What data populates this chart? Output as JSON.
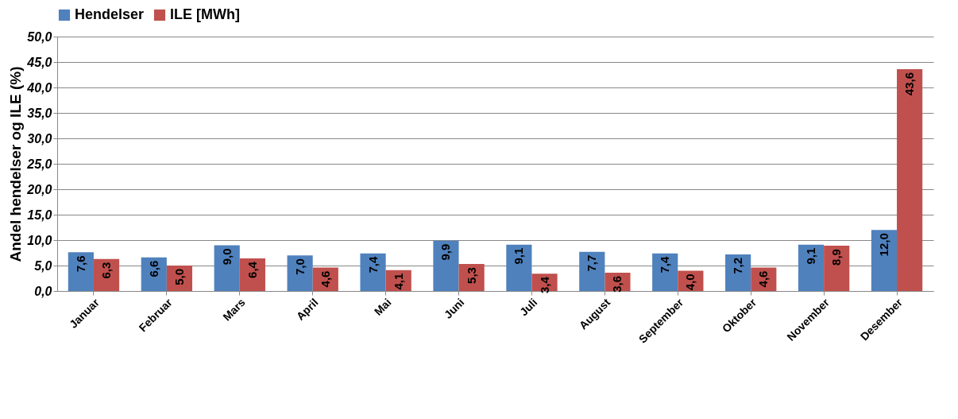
{
  "chart_data": {
    "type": "bar",
    "ylabel": "Andel hendelser og ILE (%)",
    "categories": [
      "Januar",
      "Februar",
      "Mars",
      "April",
      "Mai",
      "Juni",
      "Juli",
      "August",
      "September",
      "Oktober",
      "November",
      "Desember"
    ],
    "series": [
      {
        "name": "Hendelser",
        "color": "#4f81bd",
        "values": [
          7.6,
          6.6,
          9.0,
          7.0,
          7.4,
          9.9,
          9.1,
          7.7,
          7.4,
          7.2,
          9.1,
          12.0
        ],
        "value_labels": [
          "7,6",
          "6,6",
          "9,0",
          "7,0",
          "7,4",
          "9,9",
          "9,1",
          "7,7",
          "7,4",
          "7,2",
          "9,1",
          "12,0"
        ]
      },
      {
        "name": "ILE [MWh]",
        "color": "#c0504d",
        "values": [
          6.3,
          5.0,
          6.4,
          4.6,
          4.1,
          5.3,
          3.4,
          3.6,
          4.0,
          4.6,
          8.9,
          43.6
        ],
        "value_labels": [
          "6,3",
          "5,0",
          "6,4",
          "4,6",
          "4,1",
          "5,3",
          "3,4",
          "3,6",
          "4,0",
          "4,6",
          "8,9",
          "43,6"
        ]
      }
    ],
    "ylim": [
      0,
      50
    ],
    "yticks": [
      {
        "value": 0,
        "label": "0,0"
      },
      {
        "value": 5,
        "label": "5,0"
      },
      {
        "value": 10,
        "label": "10,0"
      },
      {
        "value": 15,
        "label": "15,0"
      },
      {
        "value": 20,
        "label": "20,0"
      },
      {
        "value": 25,
        "label": "25,0"
      },
      {
        "value": 30,
        "label": "30,0"
      },
      {
        "value": 35,
        "label": "35,0"
      },
      {
        "value": 40,
        "label": "40,0"
      },
      {
        "value": 45,
        "label": "45,0"
      },
      {
        "value": 50,
        "label": "50,0"
      }
    ],
    "grid": "y",
    "legend": "top"
  }
}
